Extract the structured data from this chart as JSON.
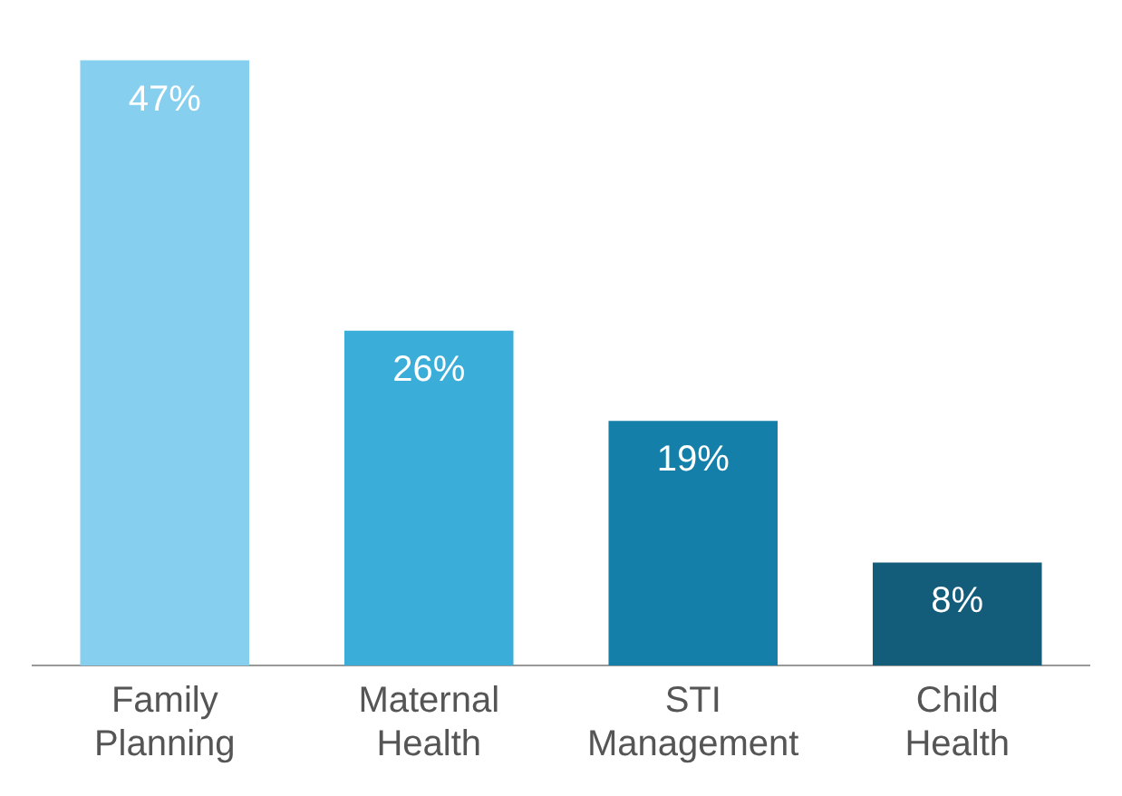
{
  "chart_data": {
    "type": "bar",
    "categories": [
      "Family Planning",
      "Maternal Health",
      "STI Management",
      "Child Health"
    ],
    "values": [
      47,
      26,
      19,
      8
    ],
    "colors": [
      "#87cfee",
      "#3aaed8",
      "#1480aa",
      "#135d7a"
    ],
    "value_labels": [
      "47%",
      "26%",
      "19%",
      "8%"
    ],
    "grid": false,
    "legend": false
  }
}
